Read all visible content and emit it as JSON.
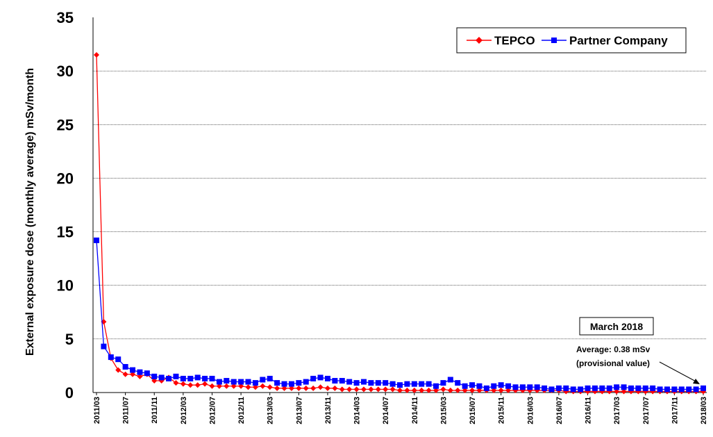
{
  "chart_data": {
    "type": "line",
    "title": "",
    "ylabel": "External exposure dose (monthly average) mSv/month",
    "xlabel": "",
    "ylim": [
      0,
      35
    ],
    "yticks": [
      0,
      5,
      10,
      15,
      20,
      25,
      30,
      35
    ],
    "grid": "horizontal",
    "legend_position": "top-right",
    "x": [
      "2011/03",
      "2011/04",
      "2011/05",
      "2011/06",
      "2011/07",
      "2011/08",
      "2011/09",
      "2011/10",
      "2011/11",
      "2011/12",
      "2012/01",
      "2012/02",
      "2012/03",
      "2012/04",
      "2012/05",
      "2012/06",
      "2012/07",
      "2012/08",
      "2012/09",
      "2012/10",
      "2012/11",
      "2012/12",
      "2013/01",
      "2013/02",
      "2013/03",
      "2013/04",
      "2013/05",
      "2013/06",
      "2013/07",
      "2013/08",
      "2013/09",
      "2013/10",
      "2013/11",
      "2013/12",
      "2014/01",
      "2014/02",
      "2014/03",
      "2014/04",
      "2014/05",
      "2014/06",
      "2014/07",
      "2014/08",
      "2014/09",
      "2014/10",
      "2014/11",
      "2014/12",
      "2015/01",
      "2015/02",
      "2015/03",
      "2015/04",
      "2015/05",
      "2015/06",
      "2015/07",
      "2015/08",
      "2015/09",
      "2015/10",
      "2015/11",
      "2015/12",
      "2016/01",
      "2016/02",
      "2016/03",
      "2016/04",
      "2016/05",
      "2016/06",
      "2016/07",
      "2016/08",
      "2016/09",
      "2016/10",
      "2016/11",
      "2016/12",
      "2017/01",
      "2017/02",
      "2017/03",
      "2017/04",
      "2017/05",
      "2017/06",
      "2017/07",
      "2017/08",
      "2017/09",
      "2017/10",
      "2017/11",
      "2017/12",
      "2018/01",
      "2018/02",
      "2018/03"
    ],
    "xtick_labels": [
      "2011/03",
      "2011/07",
      "2011/11",
      "2012/03",
      "2012/07",
      "2012/11",
      "2013/03",
      "2013/07",
      "2013/11",
      "2014/03",
      "2014/07",
      "2014/11",
      "2015/03",
      "2015/07",
      "2015/11",
      "2016/03",
      "2016/07",
      "2016/11",
      "2017/03",
      "2017/07",
      "2017/11",
      "2018/03"
    ],
    "series": [
      {
        "name": "TEPCO",
        "color": "#ff0000",
        "marker": "diamond",
        "values": [
          31.5,
          6.6,
          3.2,
          2.1,
          1.7,
          1.7,
          1.5,
          1.7,
          1.1,
          1.1,
          1.4,
          0.9,
          0.8,
          0.7,
          0.7,
          0.8,
          0.6,
          0.6,
          0.6,
          0.6,
          0.6,
          0.5,
          0.5,
          0.6,
          0.5,
          0.4,
          0.4,
          0.4,
          0.4,
          0.4,
          0.4,
          0.5,
          0.4,
          0.4,
          0.3,
          0.3,
          0.3,
          0.3,
          0.3,
          0.3,
          0.3,
          0.3,
          0.2,
          0.2,
          0.2,
          0.2,
          0.2,
          0.2,
          0.3,
          0.2,
          0.2,
          0.2,
          0.2,
          0.2,
          0.2,
          0.2,
          0.2,
          0.2,
          0.2,
          0.2,
          0.2,
          0.2,
          0.2,
          0.2,
          0.2,
          0.1,
          0.1,
          0.1,
          0.1,
          0.1,
          0.1,
          0.1,
          0.1,
          0.1,
          0.1,
          0.1,
          0.1,
          0.1,
          0.1,
          0.1,
          0.1,
          0.1,
          0.1,
          0.1,
          0.1
        ]
      },
      {
        "name": "Partner Company",
        "color": "#0000ff",
        "marker": "square",
        "values": [
          14.2,
          4.3,
          3.3,
          3.1,
          2.4,
          2.1,
          1.9,
          1.8,
          1.5,
          1.4,
          1.3,
          1.5,
          1.3,
          1.3,
          1.4,
          1.3,
          1.3,
          1.0,
          1.1,
          1.0,
          1.0,
          1.0,
          0.9,
          1.2,
          1.3,
          0.9,
          0.8,
          0.8,
          0.9,
          1.0,
          1.3,
          1.4,
          1.3,
          1.1,
          1.1,
          1.0,
          0.9,
          1.0,
          0.9,
          0.9,
          0.9,
          0.8,
          0.7,
          0.8,
          0.8,
          0.8,
          0.8,
          0.6,
          0.9,
          1.2,
          0.9,
          0.6,
          0.7,
          0.6,
          0.4,
          0.6,
          0.7,
          0.6,
          0.5,
          0.5,
          0.5,
          0.5,
          0.4,
          0.3,
          0.4,
          0.4,
          0.3,
          0.3,
          0.4,
          0.4,
          0.4,
          0.4,
          0.5,
          0.5,
          0.4,
          0.4,
          0.4,
          0.4,
          0.3,
          0.3,
          0.3,
          0.3,
          0.3,
          0.3,
          0.4
        ]
      }
    ],
    "annotation": {
      "title": "March 2018",
      "line1": "Average: 0.38 mSv",
      "line2": "(provisional value)"
    }
  }
}
